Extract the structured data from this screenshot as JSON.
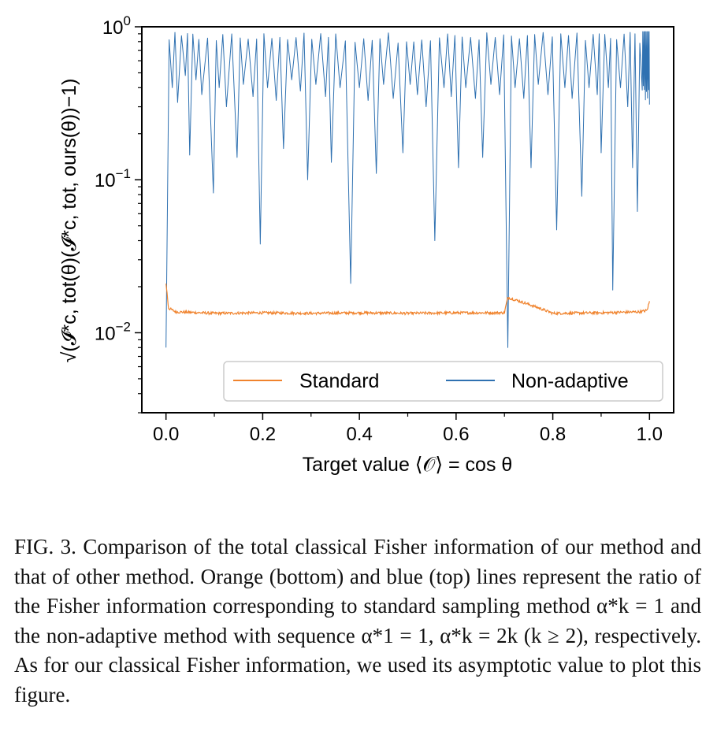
{
  "chart_data": {
    "type": "line",
    "xlabel": "Target value ⟨𝒪⟩ = cos θ",
    "ylabel": "√(𝓘*c, tot(θ)(𝓘*c, tot, ours(θ))−1)",
    "xlim": [
      -0.05,
      1.05
    ],
    "ylim": [
      0.003,
      1.0
    ],
    "yscale": "log",
    "x_ticks": [
      "0.0",
      "0.2",
      "0.4",
      "0.6",
      "0.8",
      "1.0"
    ],
    "y_ticks": [
      {
        "base": "10",
        "exp": "0"
      },
      {
        "base": "10",
        "exp": "−1"
      },
      {
        "base": "10",
        "exp": "−2"
      }
    ],
    "grid": false,
    "legend": {
      "position": "bottom-right",
      "ncol": 2
    },
    "series": [
      {
        "name": "Standard",
        "color": "#f0832d",
        "baseline": 0.0135,
        "x": [
          0.0,
          0.005,
          0.02,
          0.1,
          0.2,
          0.3,
          0.4,
          0.5,
          0.6,
          0.7,
          0.707,
          0.8,
          0.9,
          0.98,
          0.995,
          1.0
        ],
        "y": [
          0.021,
          0.0145,
          0.0137,
          0.0134,
          0.0135,
          0.0134,
          0.0135,
          0.0134,
          0.0135,
          0.0135,
          0.017,
          0.0134,
          0.0135,
          0.0137,
          0.014,
          0.016
        ]
      },
      {
        "name": "Non-adaptive",
        "color": "#2f71b1",
        "envelope": [
          0.92,
          0.55
        ],
        "x_min": 0.0,
        "x_max": 1.0,
        "dips": [
          {
            "x": 0.0,
            "y": 0.008
          },
          {
            "x": 0.013,
            "y": 0.4
          },
          {
            "x": 0.024,
            "y": 0.32
          },
          {
            "x": 0.04,
            "y": 0.48
          },
          {
            "x": 0.049,
            "y": 0.145
          },
          {
            "x": 0.062,
            "y": 0.45
          },
          {
            "x": 0.074,
            "y": 0.36
          },
          {
            "x": 0.098,
            "y": 0.082
          },
          {
            "x": 0.11,
            "y": 0.4
          },
          {
            "x": 0.125,
            "y": 0.3
          },
          {
            "x": 0.147,
            "y": 0.14
          },
          {
            "x": 0.16,
            "y": 0.42
          },
          {
            "x": 0.18,
            "y": 0.35
          },
          {
            "x": 0.195,
            "y": 0.038
          },
          {
            "x": 0.21,
            "y": 0.4
          },
          {
            "x": 0.228,
            "y": 0.33
          },
          {
            "x": 0.243,
            "y": 0.16
          },
          {
            "x": 0.26,
            "y": 0.45
          },
          {
            "x": 0.278,
            "y": 0.38
          },
          {
            "x": 0.293,
            "y": 0.1
          },
          {
            "x": 0.31,
            "y": 0.42
          },
          {
            "x": 0.33,
            "y": 0.35
          },
          {
            "x": 0.342,
            "y": 0.13
          },
          {
            "x": 0.36,
            "y": 0.4
          },
          {
            "x": 0.382,
            "y": 0.021
          },
          {
            "x": 0.4,
            "y": 0.4
          },
          {
            "x": 0.418,
            "y": 0.33
          },
          {
            "x": 0.435,
            "y": 0.11
          },
          {
            "x": 0.45,
            "y": 0.42
          },
          {
            "x": 0.47,
            "y": 0.34
          },
          {
            "x": 0.49,
            "y": 0.15
          },
          {
            "x": 0.505,
            "y": 0.42
          },
          {
            "x": 0.52,
            "y": 0.36
          },
          {
            "x": 0.538,
            "y": 0.3
          },
          {
            "x": 0.556,
            "y": 0.04
          },
          {
            "x": 0.575,
            "y": 0.4
          },
          {
            "x": 0.59,
            "y": 0.35
          },
          {
            "x": 0.605,
            "y": 0.12
          },
          {
            "x": 0.62,
            "y": 0.4
          },
          {
            "x": 0.64,
            "y": 0.34
          },
          {
            "x": 0.655,
            "y": 0.14
          },
          {
            "x": 0.672,
            "y": 0.42
          },
          {
            "x": 0.69,
            "y": 0.36
          },
          {
            "x": 0.707,
            "y": 0.008
          },
          {
            "x": 0.722,
            "y": 0.4
          },
          {
            "x": 0.74,
            "y": 0.34
          },
          {
            "x": 0.755,
            "y": 0.12
          },
          {
            "x": 0.77,
            "y": 0.42
          },
          {
            "x": 0.79,
            "y": 0.36
          },
          {
            "x": 0.808,
            "y": 0.047
          },
          {
            "x": 0.825,
            "y": 0.4
          },
          {
            "x": 0.84,
            "y": 0.34
          },
          {
            "x": 0.86,
            "y": 0.078
          },
          {
            "x": 0.875,
            "y": 0.4
          },
          {
            "x": 0.892,
            "y": 0.36
          },
          {
            "x": 0.9,
            "y": 0.15
          },
          {
            "x": 0.915,
            "y": 0.4
          },
          {
            "x": 0.924,
            "y": 0.019
          },
          {
            "x": 0.94,
            "y": 0.4
          },
          {
            "x": 0.955,
            "y": 0.3
          },
          {
            "x": 0.965,
            "y": 0.12
          },
          {
            "x": 0.975,
            "y": 0.062
          },
          {
            "x": 0.985,
            "y": 0.35
          },
          {
            "x": 0.99,
            "y": 0.3
          },
          {
            "x": 0.995,
            "y": 0.34
          },
          {
            "x": 1.0,
            "y": 0.31
          }
        ]
      }
    ]
  },
  "caption": "FIG. 3. Comparison of the total classical Fisher information of our method and that of other method. Orange (bottom) and blue (top) lines represent the ratio of the Fisher information corresponding to standard sampling method α*k = 1 and the non-adaptive method with sequence α*1 = 1, α*k = 2k (k ≥ 2), respectively. As for our classical Fisher information, we used its asymptotic value to plot this figure."
}
